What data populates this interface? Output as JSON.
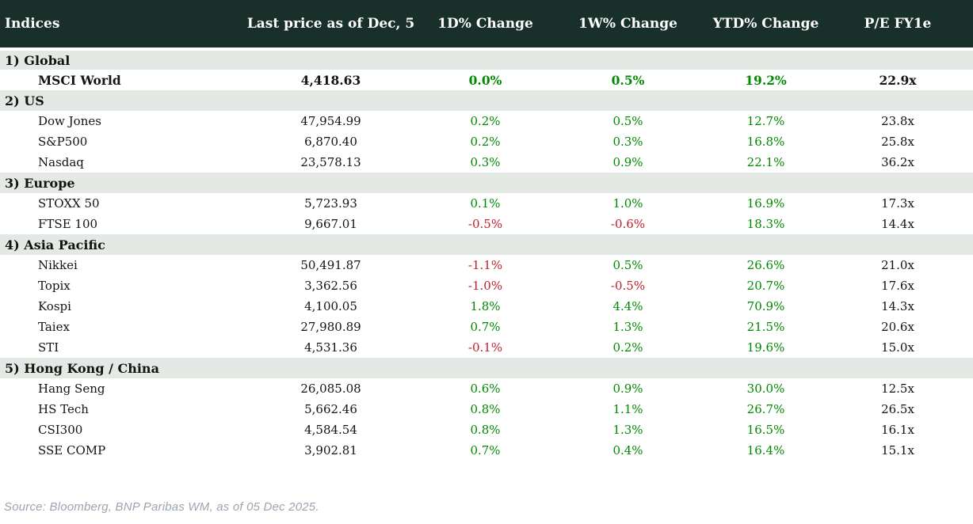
{
  "chart_data": {
    "type": "table",
    "title": "Indices",
    "columns": [
      "Indices",
      "Last price as of Dec, 5",
      "1D% Change",
      "1W% Change",
      "YTD% Change",
      "P/E FY1e"
    ],
    "sections": [
      {
        "label": "1) Global",
        "rows": [
          {
            "name": "MSCI World",
            "price": "4,418.63",
            "d1": "0.0%",
            "w1": "0.5%",
            "ytd": "19.2%",
            "pe": "22.9x",
            "bold": true
          }
        ]
      },
      {
        "label": "2) US",
        "rows": [
          {
            "name": "Dow Jones",
            "price": "47,954.99",
            "d1": "0.2%",
            "w1": "0.5%",
            "ytd": "12.7%",
            "pe": "23.8x"
          },
          {
            "name": "S&P500",
            "price": "6,870.40",
            "d1": "0.2%",
            "w1": "0.3%",
            "ytd": "16.8%",
            "pe": "25.8x"
          },
          {
            "name": "Nasdaq",
            "price": "23,578.13",
            "d1": "0.3%",
            "w1": "0.9%",
            "ytd": "22.1%",
            "pe": "36.2x"
          }
        ]
      },
      {
        "label": "3) Europe",
        "rows": [
          {
            "name": "STOXX 50",
            "price": "5,723.93",
            "d1": "0.1%",
            "w1": "1.0%",
            "ytd": "16.9%",
            "pe": "17.3x"
          },
          {
            "name": "FTSE 100",
            "price": "9,667.01",
            "d1": "-0.5%",
            "w1": "-0.6%",
            "ytd": "18.3%",
            "pe": "14.4x"
          }
        ]
      },
      {
        "label": "4) Asia Pacific",
        "rows": [
          {
            "name": "Nikkei",
            "price": "50,491.87",
            "d1": "-1.1%",
            "w1": "0.5%",
            "ytd": "26.6%",
            "pe": "21.0x"
          },
          {
            "name": "Topix",
            "price": "3,362.56",
            "d1": "-1.0%",
            "w1": "-0.5%",
            "ytd": "20.7%",
            "pe": "17.6x"
          },
          {
            "name": "Kospi",
            "price": "4,100.05",
            "d1": "1.8%",
            "w1": "4.4%",
            "ytd": "70.9%",
            "pe": "14.3x"
          },
          {
            "name": "Taiex",
            "price": "27,980.89",
            "d1": "0.7%",
            "w1": "1.3%",
            "ytd": "21.5%",
            "pe": "20.6x"
          },
          {
            "name": "STI",
            "price": "4,531.36",
            "d1": "-0.1%",
            "w1": "0.2%",
            "ytd": "19.6%",
            "pe": "15.0x"
          }
        ]
      },
      {
        "label": "5) Hong Kong / China",
        "rows": [
          {
            "name": "Hang Seng",
            "price": "26,085.08",
            "d1": "0.6%",
            "w1": "0.9%",
            "ytd": "30.0%",
            "pe": "12.5x"
          },
          {
            "name": "HS Tech",
            "price": "5,662.46",
            "d1": "0.8%",
            "w1": "1.1%",
            "ytd": "26.7%",
            "pe": "26.5x"
          },
          {
            "name": "CSI300",
            "price": "4,584.54",
            "d1": "0.8%",
            "w1": "1.3%",
            "ytd": "16.5%",
            "pe": "16.1x"
          },
          {
            "name": "SSE COMP",
            "price": "3,902.81",
            "d1": "0.7%",
            "w1": "0.4%",
            "ytd": "16.4%",
            "pe": "15.1x"
          }
        ]
      }
    ]
  },
  "footer": {
    "source": "Source: Bloomberg, BNP Paribas WM, as of 05 Dec 2025."
  },
  "colors": {
    "header_bg": "#192f2a",
    "section_bg": "#e4e9e5",
    "positive": "#008a00",
    "negative": "#c1202e",
    "header_text": "#ffffff",
    "body_text": "#131313",
    "source_text": "#9aa5b1"
  }
}
